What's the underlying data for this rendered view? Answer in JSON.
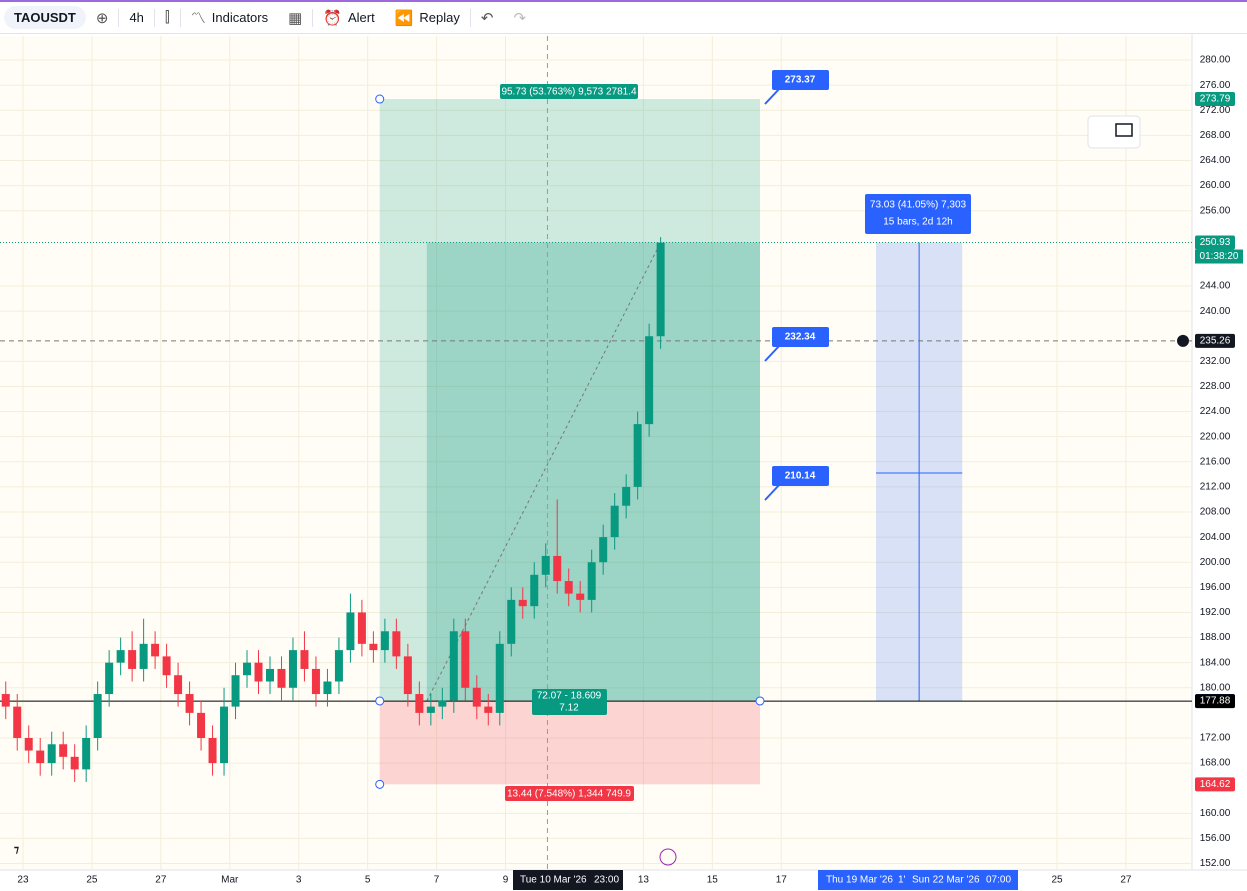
{
  "toolbar": {
    "symbol": "TAOUSDT",
    "interval": "4h",
    "indicators": "Indicators",
    "alert": "Alert",
    "replay": "Replay"
  },
  "chart_data": {
    "type": "candlestick",
    "up_color": "#089981",
    "down_color": "#f23645",
    "x": [
      3,
      5,
      7,
      9,
      11,
      13,
      15,
      17,
      19,
      21,
      23,
      25,
      27,
      29,
      31,
      33,
      35,
      37,
      39,
      41,
      43,
      45,
      47,
      49,
      51,
      53,
      55,
      57,
      59,
      61,
      63,
      65,
      67,
      69,
      71,
      73,
      75,
      77,
      79,
      81,
      83,
      85,
      87,
      89,
      91,
      93,
      95,
      97,
      99,
      101,
      103,
      105,
      107,
      109,
      111,
      113,
      115,
      117
    ],
    "open": [
      179,
      177,
      172,
      170,
      168,
      171,
      169,
      167,
      172,
      179,
      184,
      186,
      183,
      187,
      185,
      182,
      179,
      176,
      172,
      168,
      177,
      182,
      184,
      181,
      183,
      180,
      186,
      183,
      179,
      181,
      186,
      192,
      187,
      186,
      189,
      185,
      179,
      176,
      177,
      178,
      189,
      180,
      177,
      176,
      187,
      194,
      193,
      198,
      201,
      197,
      195,
      194,
      200,
      204,
      209,
      212,
      222,
      236
    ],
    "high": [
      181,
      179,
      174,
      172,
      173,
      173,
      171,
      174,
      181,
      186,
      188,
      189,
      191,
      189,
      187,
      184,
      181,
      178,
      174,
      180,
      184,
      186,
      186,
      185,
      185,
      188,
      189,
      185,
      183,
      188,
      195,
      194,
      189,
      191,
      191,
      187,
      181,
      179,
      180,
      191,
      191,
      182,
      179,
      189,
      196,
      196,
      200,
      203,
      210,
      199,
      197,
      202,
      206,
      211,
      214,
      224,
      238,
      251.8
    ],
    "low": [
      175,
      170,
      168,
      166,
      166,
      167,
      165,
      165,
      170,
      177,
      182,
      181,
      181,
      183,
      180,
      177,
      174,
      170,
      166,
      166,
      175,
      180,
      179,
      179,
      178,
      178,
      181,
      177,
      177,
      179,
      184,
      185,
      184,
      184,
      183,
      177,
      174,
      174,
      175,
      176,
      178,
      175,
      174,
      174,
      185,
      191,
      191,
      196,
      195,
      193,
      192,
      192,
      198,
      202,
      207,
      210,
      220,
      234
    ],
    "close": [
      177,
      172,
      170,
      168,
      171,
      169,
      167,
      172,
      179,
      184,
      186,
      183,
      187,
      185,
      182,
      179,
      176,
      172,
      168,
      177,
      182,
      184,
      181,
      183,
      180,
      186,
      183,
      179,
      181,
      186,
      192,
      187,
      186,
      189,
      185,
      179,
      176,
      177,
      178,
      189,
      180,
      177,
      176,
      187,
      194,
      193,
      198,
      201,
      197,
      195,
      194,
      200,
      204,
      209,
      212,
      222,
      236,
      250.93
    ],
    "xlim": [
      2,
      209.5
    ],
    "xticks": [
      {
        "value": 6,
        "label": "23"
      },
      {
        "value": 18,
        "label": "25"
      },
      {
        "value": 30,
        "label": "27"
      },
      {
        "value": 42,
        "label": "Mar"
      },
      {
        "value": 54,
        "label": "3"
      },
      {
        "value": 66,
        "label": "5"
      },
      {
        "value": 78,
        "label": "7"
      },
      {
        "value": 90,
        "label": "9"
      },
      {
        "value": 114,
        "label": "13"
      },
      {
        "value": 126,
        "label": "15"
      },
      {
        "value": 138,
        "label": "17"
      },
      {
        "value": 186,
        "label": "25"
      },
      {
        "value": 198,
        "label": "27"
      }
    ],
    "ylim": [
      150.97,
      283.83
    ],
    "yticks": [
      {
        "value": 152,
        "label": "152.00"
      },
      {
        "value": 156,
        "label": "156.00"
      },
      {
        "value": 160,
        "label": "160.00"
      },
      {
        "value": 168,
        "label": "168.00"
      },
      {
        "value": 172,
        "label": "172.00"
      },
      {
        "value": 180,
        "label": "180.00"
      },
      {
        "value": 184,
        "label": "184.00"
      },
      {
        "value": 188,
        "label": "188.00"
      },
      {
        "value": 192,
        "label": "192.00"
      },
      {
        "value": 196,
        "label": "196.00"
      },
      {
        "value": 200,
        "label": "200.00"
      },
      {
        "value": 204,
        "label": "204.00"
      },
      {
        "value": 208,
        "label": "208.00"
      },
      {
        "value": 212,
        "label": "212.00"
      },
      {
        "value": 216,
        "label": "216.00"
      },
      {
        "value": 220,
        "label": "220.00"
      },
      {
        "value": 224,
        "label": "224.00"
      },
      {
        "value": 228,
        "label": "228.00"
      },
      {
        "value": 232,
        "label": "232.00"
      },
      {
        "value": 240,
        "label": "240.00"
      },
      {
        "value": 244,
        "label": "244.00"
      },
      {
        "value": 256,
        "label": "256.00"
      },
      {
        "value": 260,
        "label": "260.00"
      },
      {
        "value": 264,
        "label": "264.00"
      },
      {
        "value": 268,
        "label": "268.00"
      },
      {
        "value": 272,
        "label": "272.00"
      },
      {
        "value": 276,
        "label": "276.00"
      },
      {
        "value": 280,
        "label": "280.00"
      }
    ],
    "grid": true,
    "price_tags": [
      {
        "value": 273.79,
        "color": "#089981"
      },
      {
        "value": 250.93,
        "color": "#089981"
      },
      {
        "value": 235.26,
        "color": "#131722"
      },
      {
        "value": 177.9,
        "color": "#2962ff"
      },
      {
        "value": 177.88,
        "color": "#000000"
      },
      {
        "value": 164.62,
        "color": "#f23645"
      }
    ],
    "countdown": "01:38:20",
    "position_tool": {
      "profit_label": "95.73 (53.763%) 9,573 2781.4",
      "entry_label": [
        "72.07 - 18.609",
        "7.12"
      ],
      "loss_label": "13.44 (7.548%) 1,344 749.9"
    },
    "callouts": [
      "273.37",
      "232.34",
      "210.14"
    ],
    "date_range": [
      "73.03 (41.05%) 7,303",
      "15 bars, 2d 12h"
    ],
    "time_labels": [
      "Tue 10 Mar '26",
      "23:00",
      "Thu 19 Mar '26",
      "1'",
      "Sun 22 Mar '26",
      "07:00"
    ]
  }
}
